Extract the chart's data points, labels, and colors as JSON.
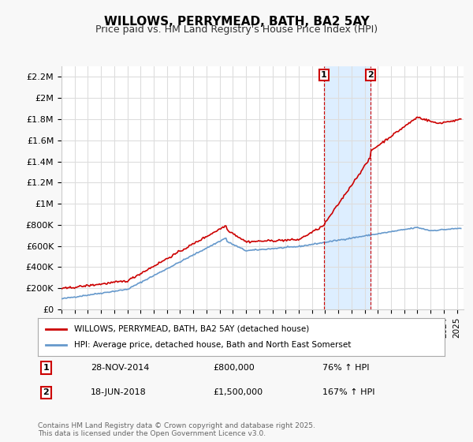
{
  "title": "WILLOWS, PERRYMEAD, BATH, BA2 5AY",
  "subtitle": "Price paid vs. HM Land Registry's House Price Index (HPI)",
  "xlabel": "",
  "ylabel": "",
  "ylim": [
    0,
    2300000
  ],
  "xlim_start": 1995.0,
  "xlim_end": 2025.5,
  "yticks": [
    0,
    200000,
    400000,
    600000,
    800000,
    1000000,
    1200000,
    1400000,
    1600000,
    1800000,
    2000000,
    2200000
  ],
  "ytick_labels": [
    "£0",
    "£200K",
    "£400K",
    "£600K",
    "£800K",
    "£1M",
    "£1.2M",
    "£1.4M",
    "£1.6M",
    "£1.8M",
    "£2M",
    "£2.2M"
  ],
  "xticks": [
    1995,
    1996,
    1997,
    1998,
    1999,
    2000,
    2001,
    2002,
    2003,
    2004,
    2005,
    2006,
    2007,
    2008,
    2009,
    2010,
    2011,
    2012,
    2013,
    2014,
    2015,
    2016,
    2017,
    2018,
    2019,
    2020,
    2021,
    2022,
    2023,
    2024,
    2025
  ],
  "property_color": "#cc0000",
  "hpi_color": "#6699cc",
  "shade_color": "#ddeeff",
  "event1_x": 2014.91,
  "event1_y": 800000,
  "event1_label": "1",
  "event1_date": "28-NOV-2014",
  "event1_price": "£800,000",
  "event1_hpi": "76% ↑ HPI",
  "event2_x": 2018.46,
  "event2_y": 1500000,
  "event2_label": "2",
  "event2_date": "18-JUN-2018",
  "event2_price": "£1,500,000",
  "event2_hpi": "167% ↑ HPI",
  "legend_line1": "WILLOWS, PERRYMEAD, BATH, BA2 5AY (detached house)",
  "legend_line2": "HPI: Average price, detached house, Bath and North East Somerset",
  "footer": "Contains HM Land Registry data © Crown copyright and database right 2025.\nThis data is licensed under the Open Government Licence v3.0.",
  "background_color": "#f8f8f8",
  "plot_bg_color": "#ffffff",
  "grid_color": "#dddddd"
}
